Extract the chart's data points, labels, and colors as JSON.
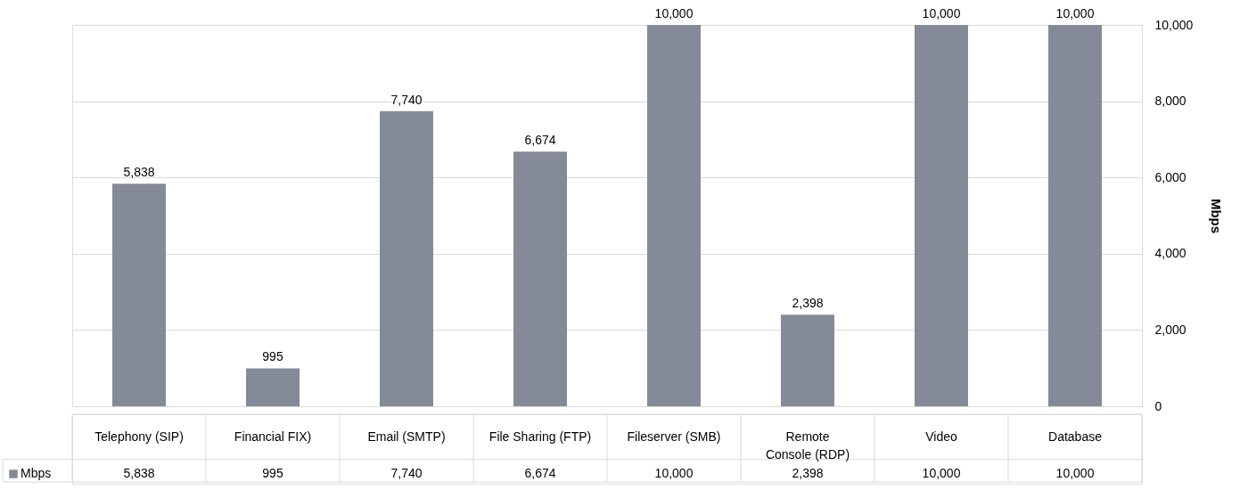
{
  "chart_data": {
    "type": "bar",
    "categories": [
      "Telephony (SIP)",
      "Financial FIX)",
      "Email (SMTP)",
      "File Sharing (FTP)",
      "Fileserver (SMB)",
      "Remote Console (RDP)",
      "Video",
      "Database"
    ],
    "series": [
      {
        "name": "Mbps",
        "color": "#858a98",
        "values": [
          5838,
          995,
          7740,
          6674,
          10000,
          2398,
          10000,
          10000
        ]
      }
    ],
    "value_labels": [
      "5,838",
      "995",
      "7,740",
      "6,674",
      "10,000",
      "2,398",
      "10,000",
      "10,000"
    ],
    "ylabel": "Mbps",
    "ylim": [
      0,
      10000
    ],
    "yticks": [
      0,
      {
        "value": 2000,
        "label": "2,000"
      },
      {
        "value": 4000,
        "label": "4,000"
      },
      {
        "value": 6000,
        "label": "6,000"
      },
      {
        "value": 8000,
        "label": "8,000"
      },
      {
        "value": 10000,
        "label": "10,000"
      }
    ],
    "grid": "y",
    "legend": "bottom left"
  }
}
